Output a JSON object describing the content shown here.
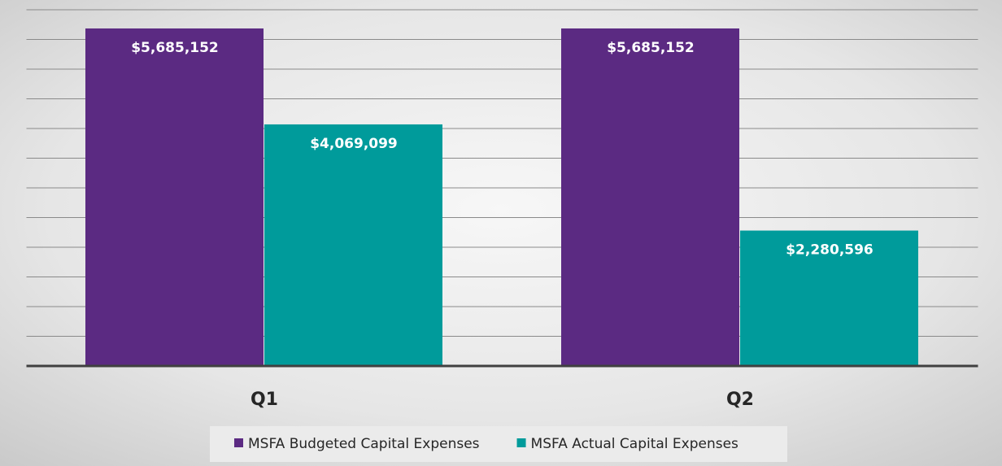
{
  "chart_data": {
    "type": "bar",
    "categories": [
      "Q1",
      "Q2"
    ],
    "series": [
      {
        "name": "MSFA Budgeted Capital Expenses",
        "color": "#5b2a82",
        "values": [
          5685152,
          5685152
        ],
        "value_labels": [
          "$5,685,152",
          "$5,685,152"
        ]
      },
      {
        "name": "MSFA Actual Capital Expenses",
        "color": "#009b9b",
        "values": [
          4069099,
          2280596
        ],
        "value_labels": [
          "$4,069,099",
          "$2,280,596"
        ]
      }
    ],
    "ylim": [
      0,
      6000000
    ],
    "yticks": [
      0,
      500000,
      1000000,
      1500000,
      2000000,
      2500000,
      3000000,
      3500000,
      4000000,
      4500000,
      5000000,
      5500000,
      6000000
    ],
    "grid": true,
    "legend": "bottom"
  }
}
